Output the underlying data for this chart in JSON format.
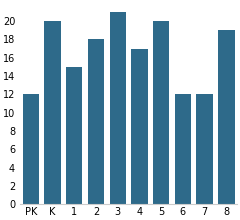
{
  "categories": [
    "PK",
    "K",
    "1",
    "2",
    "3",
    "4",
    "5",
    "6",
    "7",
    "8"
  ],
  "values": [
    12,
    20,
    15,
    18,
    21,
    17,
    20,
    12,
    12,
    19
  ],
  "bar_color": "#2e6a8a",
  "ylim": [
    0,
    22
  ],
  "yticks": [
    0,
    2,
    4,
    6,
    8,
    10,
    12,
    14,
    16,
    18,
    20
  ],
  "background_color": "#ffffff",
  "tick_fontsize": 7.0
}
